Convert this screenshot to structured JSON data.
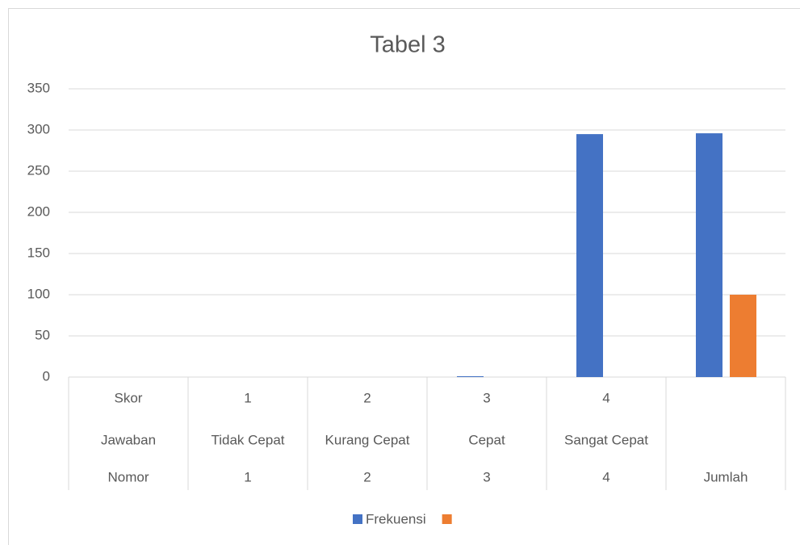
{
  "chart_data": {
    "type": "bar",
    "title": "Tabel 3",
    "category_levels": [
      [
        "Skor",
        "1",
        "2",
        "3",
        "4",
        null
      ],
      [
        "Jawaban",
        "Tidak Cepat",
        "Kurang Cepat",
        "Cepat",
        "Sangat Cepat",
        null
      ],
      [
        "Nomor",
        "1",
        "2",
        "3",
        "4",
        "Jumlah"
      ]
    ],
    "series": [
      {
        "name": "Frekuensi",
        "color": "#4472c4",
        "values": [
          0,
          0,
          0,
          1,
          295,
          296
        ]
      },
      {
        "name": null,
        "color": "#ed7d31",
        "values": [
          null,
          null,
          null,
          null,
          null,
          100
        ]
      }
    ],
    "ylim": [
      0,
      350
    ],
    "yticks": [
      0,
      50,
      100,
      150,
      200,
      250,
      300,
      350
    ],
    "grid": true,
    "legend": "bottom"
  }
}
